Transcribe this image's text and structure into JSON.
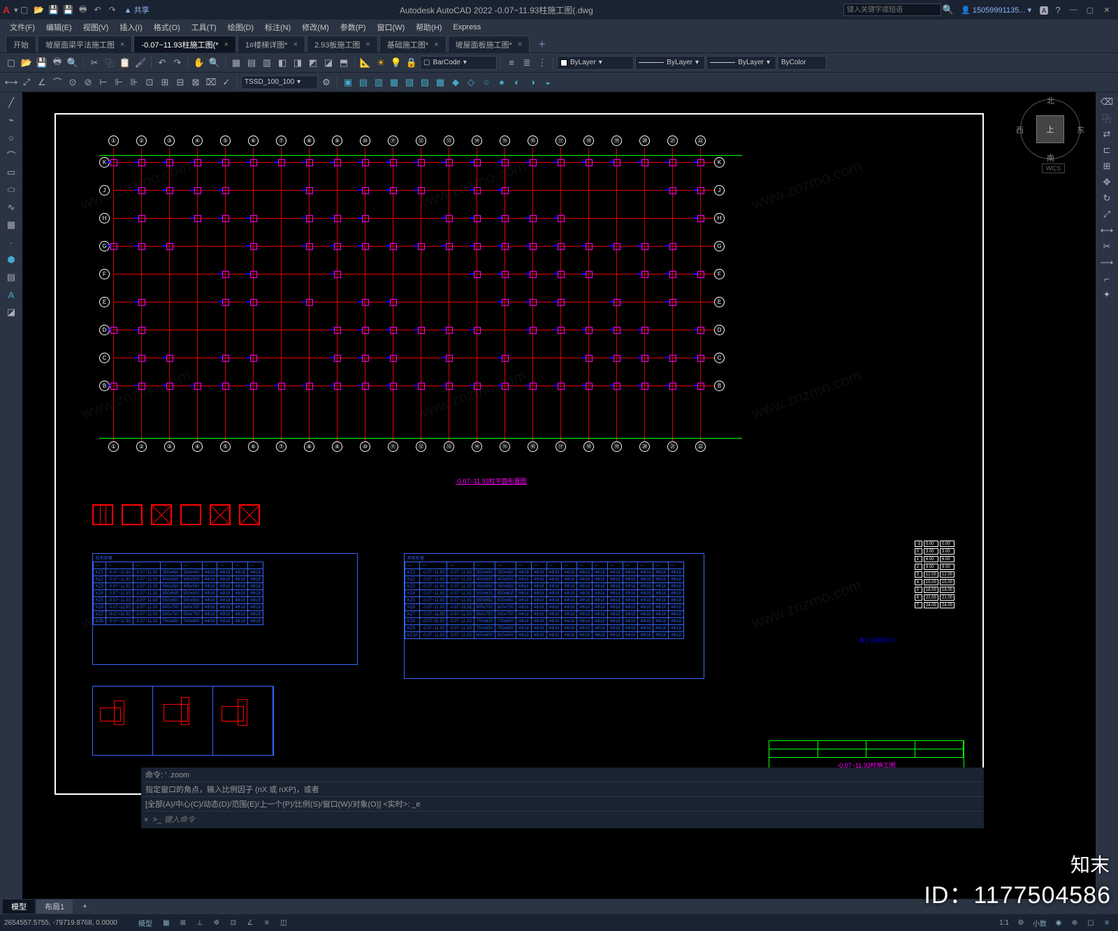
{
  "app": {
    "title": "Autodesk AutoCAD 2022   -0.07~11.93柱施工图(.dwg",
    "search_placeholder": "键入关键字或短语",
    "user": "15059991135...",
    "share": "共享"
  },
  "menu": [
    "文件(F)",
    "编辑(E)",
    "视图(V)",
    "插入(I)",
    "格式(O)",
    "工具(T)",
    "绘图(D)",
    "标注(N)",
    "修改(M)",
    "参数(P)",
    "窗口(W)",
    "帮助(H)",
    "Express"
  ],
  "doctabs": [
    {
      "label": "开始",
      "closable": false
    },
    {
      "label": "坡屋面梁平法施工图",
      "closable": true
    },
    {
      "label": "-0.07~11.93柱施工图(*",
      "closable": true,
      "active": true
    },
    {
      "label": "1#楼梯详图*",
      "closable": true
    },
    {
      "label": "2.93板施工图",
      "closable": true
    },
    {
      "label": "基础施工图*",
      "closable": true
    },
    {
      "label": "坡屋面板施工图*",
      "closable": true
    }
  ],
  "toolbar": {
    "barcode_label": "BarCode",
    "tssd_value": "TSSD_100_100",
    "layer_name": "ByLayer",
    "linetype": "ByLayer",
    "lineweight": "ByLayer",
    "color": "ByColor"
  },
  "viewcube": {
    "top": "上",
    "n": "北",
    "s": "南",
    "e": "东",
    "w": "西",
    "wcs": "WCS"
  },
  "plan": {
    "h_grids": [
      "K",
      "J",
      "H",
      "G",
      "F",
      "E",
      "D",
      "C",
      "B"
    ],
    "v_grids": [
      "①",
      "②",
      "③",
      "④",
      "⑤",
      "⑥",
      "⑦",
      "⑧",
      "⑨",
      "⑩",
      "⑪",
      "⑫",
      "⑬",
      "⑭",
      "⑮",
      "⑯",
      "⑰",
      "⑱",
      "⑲",
      "⑳",
      "㉑",
      "㉒"
    ],
    "title": "-0.07~11.93柱平面布置图"
  },
  "table1_title": "柱形状表",
  "table2_title": "异形柱表",
  "cmd": {
    "hist1": "命令: ' .zoom",
    "hist2": "指定窗口的角点，输入比例因子 (nX 或 nXP)，或者",
    "hist3": "[全部(A)/中心(C)/动态(D)/范围(E)/上一个(P)/比例(S)/窗口(W)/对象(O)] <实时>: _e",
    "placeholder": "键入命令"
  },
  "modeltabs": [
    "模型",
    "布局1"
  ],
  "status": {
    "coords": "2654557.5755, -79719.8768, 0.0000",
    "model": "模型",
    "scale": "1:1",
    "small": "小数"
  },
  "titleblock_main": "-0.07~11.93柱施工图",
  "overlay_id": "ID：1177504586",
  "overlay_logo": "知末",
  "note_text": "备注\n                见说明17-3。",
  "watermark": "www.znzmo.com"
}
